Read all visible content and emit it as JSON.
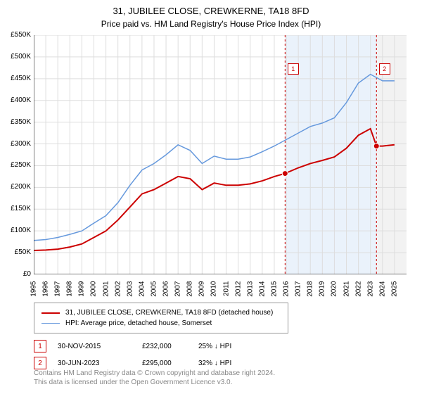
{
  "title": "31, JUBILEE CLOSE, CREWKERNE, TA18 8FD",
  "subtitle": "Price paid vs. HM Land Registry's House Price Index (HPI)",
  "chart": {
    "type": "line",
    "background_color": "#ffffff",
    "grid_color": "#dddddd",
    "axis_color": "#000000",
    "ylim": [
      0,
      550000
    ],
    "xlim": [
      1995,
      2026
    ],
    "y_ticks": [
      0,
      50000,
      100000,
      150000,
      200000,
      250000,
      300000,
      350000,
      400000,
      450000,
      500000,
      550000
    ],
    "y_tick_labels": [
      "£0",
      "£50K",
      "£100K",
      "£150K",
      "£200K",
      "£250K",
      "£300K",
      "£350K",
      "£400K",
      "£450K",
      "£500K",
      "£550K"
    ],
    "x_ticks": [
      1995,
      1996,
      1997,
      1998,
      1999,
      2000,
      2001,
      2002,
      2003,
      2004,
      2005,
      2006,
      2007,
      2008,
      2009,
      2010,
      2011,
      2012,
      2013,
      2014,
      2015,
      2016,
      2017,
      2018,
      2019,
      2020,
      2021,
      2022,
      2023,
      2024,
      2025
    ],
    "label_fontsize": 10,
    "shade_regions": [
      {
        "x_start": 2015.9,
        "x_end": 2023.5,
        "color": "#eaf2fb"
      },
      {
        "x_start": 2023.5,
        "x_end": 2026,
        "color": "#f2f2f2"
      }
    ],
    "series": [
      {
        "name": "property",
        "label": "31, JUBILEE CLOSE, CREWKERNE, TA18 8FD (detached house)",
        "color": "#cc0000",
        "line_width": 2,
        "points": [
          [
            1995,
            55000
          ],
          [
            1996,
            56000
          ],
          [
            1997,
            58000
          ],
          [
            1998,
            63000
          ],
          [
            1999,
            70000
          ],
          [
            2000,
            85000
          ],
          [
            2001,
            100000
          ],
          [
            2002,
            125000
          ],
          [
            2003,
            155000
          ],
          [
            2004,
            185000
          ],
          [
            2005,
            195000
          ],
          [
            2006,
            210000
          ],
          [
            2007,
            225000
          ],
          [
            2008,
            220000
          ],
          [
            2009,
            195000
          ],
          [
            2010,
            210000
          ],
          [
            2011,
            205000
          ],
          [
            2012,
            205000
          ],
          [
            2013,
            208000
          ],
          [
            2014,
            215000
          ],
          [
            2015,
            225000
          ],
          [
            2015.9,
            232000
          ],
          [
            2017,
            245000
          ],
          [
            2018,
            255000
          ],
          [
            2019,
            262000
          ],
          [
            2020,
            270000
          ],
          [
            2021,
            290000
          ],
          [
            2022,
            320000
          ],
          [
            2023,
            335000
          ],
          [
            2023.5,
            295000
          ],
          [
            2024,
            295000
          ],
          [
            2025,
            298000
          ]
        ]
      },
      {
        "name": "hpi",
        "label": "HPI: Average price, detached house, Somerset",
        "color": "#6699dd",
        "line_width": 1.5,
        "points": [
          [
            1995,
            78000
          ],
          [
            1996,
            80000
          ],
          [
            1997,
            85000
          ],
          [
            1998,
            92000
          ],
          [
            1999,
            100000
          ],
          [
            2000,
            118000
          ],
          [
            2001,
            135000
          ],
          [
            2002,
            165000
          ],
          [
            2003,
            205000
          ],
          [
            2004,
            240000
          ],
          [
            2005,
            255000
          ],
          [
            2006,
            275000
          ],
          [
            2007,
            298000
          ],
          [
            2008,
            285000
          ],
          [
            2009,
            255000
          ],
          [
            2010,
            272000
          ],
          [
            2011,
            265000
          ],
          [
            2012,
            265000
          ],
          [
            2013,
            270000
          ],
          [
            2014,
            282000
          ],
          [
            2015,
            295000
          ],
          [
            2016,
            310000
          ],
          [
            2017,
            325000
          ],
          [
            2018,
            340000
          ],
          [
            2019,
            348000
          ],
          [
            2020,
            360000
          ],
          [
            2021,
            395000
          ],
          [
            2022,
            440000
          ],
          [
            2023,
            460000
          ],
          [
            2024,
            445000
          ],
          [
            2025,
            445000
          ]
        ]
      }
    ],
    "markers": [
      {
        "n": "1",
        "x": 2015.9,
        "y": 232000,
        "color": "#cc0000",
        "label_x": 2016.1,
        "label_y": 485000
      },
      {
        "n": "2",
        "x": 2023.5,
        "y": 295000,
        "color": "#cc0000",
        "label_x": 2023.7,
        "label_y": 485000
      }
    ]
  },
  "legend": {
    "items": [
      {
        "color": "#cc0000",
        "width": 2,
        "label": "31, JUBILEE CLOSE, CREWKERNE, TA18 8FD (detached house)"
      },
      {
        "color": "#6699dd",
        "width": 1.5,
        "label": "HPI: Average price, detached house, Somerset"
      }
    ]
  },
  "annotations": [
    {
      "n": "1",
      "color": "#cc0000",
      "date": "30-NOV-2015",
      "price": "£232,000",
      "delta": "25% ↓ HPI"
    },
    {
      "n": "2",
      "color": "#cc0000",
      "date": "30-JUN-2023",
      "price": "£295,000",
      "delta": "32% ↓ HPI"
    }
  ],
  "footer": {
    "line1": "Contains HM Land Registry data © Crown copyright and database right 2024.",
    "line2": "This data is licensed under the Open Government Licence v3.0."
  }
}
